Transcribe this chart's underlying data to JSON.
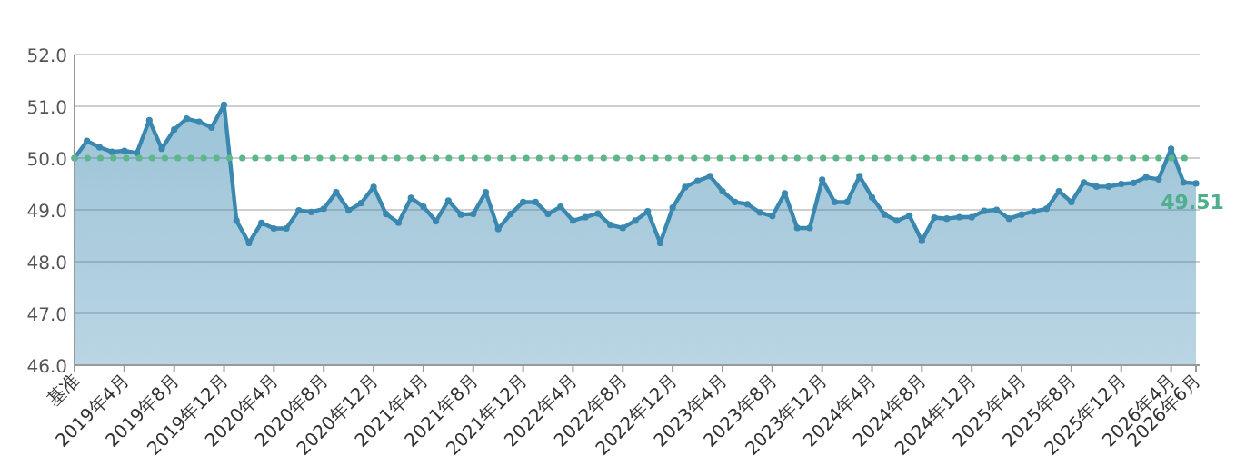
{
  "chart_data": {
    "type": "area",
    "categories": [
      "基准",
      null,
      null,
      null,
      "2019年4月",
      null,
      null,
      null,
      "2019年8月",
      null,
      null,
      null,
      "2019年12月",
      null,
      null,
      null,
      "2020年4月",
      null,
      null,
      null,
      "2020年8月",
      null,
      null,
      null,
      "2020年12月",
      null,
      null,
      null,
      "2021年4月",
      null,
      null,
      null,
      "2021年8月",
      null,
      null,
      null,
      "2021年12月",
      null,
      null,
      null,
      "2022年4月",
      null,
      null,
      null,
      "2022年8月",
      null,
      null,
      null,
      "2022年12月",
      null,
      null,
      null,
      "2023年4月",
      null,
      null,
      null,
      "2023年8月",
      null,
      null,
      null,
      "2023年12月",
      null,
      null,
      null,
      "2024年4月",
      null,
      null,
      null,
      "2024年8月",
      null,
      null,
      null,
      "2024年12月",
      null,
      null,
      null,
      "2025年4月",
      null,
      null,
      null,
      "2025年8月",
      null,
      null,
      null,
      "2025年12月",
      null,
      null,
      null,
      "2026年4月",
      null,
      "2026年6月"
    ],
    "series": [
      {
        "color": "#3a88b0",
        "values": [
          50.0,
          50.33,
          50.21,
          50.12,
          50.14,
          50.1,
          50.73,
          50.18,
          50.55,
          50.76,
          50.7,
          50.59,
          51.03,
          48.79,
          48.36,
          48.75,
          48.64,
          48.64,
          48.99,
          48.96,
          49.02,
          49.34,
          48.99,
          49.13,
          49.44,
          48.92,
          48.75,
          49.23,
          49.06,
          48.78,
          49.18,
          48.91,
          48.92,
          49.34,
          48.63,
          48.92,
          49.15,
          49.15,
          48.92,
          49.06,
          48.79,
          48.86,
          48.93,
          48.71,
          48.65,
          48.79,
          48.97,
          48.36,
          49.04,
          49.44,
          49.56,
          49.65,
          49.36,
          49.15,
          49.11,
          48.95,
          48.88,
          49.32,
          48.65,
          48.65,
          49.58,
          49.15,
          49.15,
          49.65,
          49.24,
          48.91,
          48.79,
          48.89,
          48.4,
          48.85,
          48.83,
          48.86,
          48.86,
          48.98,
          49.0,
          48.83,
          48.91,
          48.97,
          49.02,
          49.36,
          49.15,
          49.53,
          49.45,
          49.45,
          49.5,
          49.52,
          49.63,
          49.59,
          50.18,
          49.53,
          49.51
        ],
        "value_labels": [
          null,
          null,
          null,
          null,
          null,
          null,
          null,
          null,
          null,
          null,
          null,
          null,
          null,
          null,
          null,
          null,
          null,
          null,
          null,
          null,
          null,
          null,
          null,
          null,
          null,
          null,
          null,
          null,
          null,
          null,
          null,
          null,
          null,
          null,
          null,
          null,
          null,
          null,
          null,
          null,
          null,
          null,
          null,
          null,
          null,
          null,
          null,
          null,
          null,
          null,
          null,
          null,
          null,
          null,
          null,
          null,
          null,
          null,
          null,
          null,
          null,
          null,
          null,
          null,
          null,
          null,
          null,
          null,
          null,
          null,
          null,
          null,
          null,
          null,
          null,
          null,
          null,
          null,
          null,
          null,
          null,
          null,
          null,
          null,
          null,
          null,
          null,
          null,
          null,
          null,
          "49.51"
        ]
      }
    ],
    "ylim": [
      46,
      52
    ],
    "yticks": [
      {
        "value": 46,
        "label": "46.0"
      },
      {
        "value": 47,
        "label": "47.0"
      },
      {
        "value": 48,
        "label": "48.0"
      },
      {
        "value": 49,
        "label": "49.0"
      },
      {
        "value": 50,
        "label": "50.0"
      },
      {
        "value": 51,
        "label": "51.0"
      },
      {
        "value": 52,
        "label": "52.0"
      }
    ],
    "grid": "y",
    "marker": "circle",
    "line_style": "solid",
    "ref_lines": [
      {
        "axis": "y",
        "value": 50,
        "color": "#5cb88a",
        "line_style": "dotted"
      }
    ]
  }
}
